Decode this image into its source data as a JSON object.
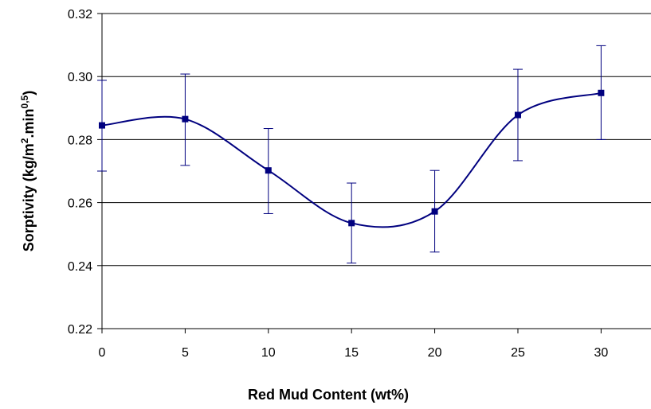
{
  "chart_data": {
    "type": "line",
    "xlabel": "Red Mud Content (wt%)",
    "ylabel": {
      "base": "Sorptivity (kg/m",
      "sup1": "2",
      "mid": ".min",
      "sup2": "0,5",
      "end": ")"
    },
    "xlim": [
      0,
      33
    ],
    "ylim": [
      0.22,
      0.32
    ],
    "xticks": [
      "0",
      "5",
      "10",
      "15",
      "20",
      "25",
      "30"
    ],
    "yticks": [
      "0.22",
      "0.24",
      "0.26",
      "0.28",
      "0.30",
      "0.32"
    ],
    "grid": "horizontal",
    "legend": "none",
    "smoothed": true,
    "series": [
      {
        "x": [
          0,
          5,
          10,
          15,
          20,
          25,
          30
        ],
        "y": [
          0.2845,
          0.2865,
          0.2702,
          0.2535,
          0.2572,
          0.2878,
          0.2948
        ],
        "error_low": [
          0.27,
          0.2718,
          0.2565,
          0.2408,
          0.2443,
          0.2733,
          0.28
        ],
        "error_high": [
          0.2988,
          0.3008,
          0.2835,
          0.2662,
          0.2702,
          0.3023,
          0.3098
        ],
        "color": "#00007f"
      }
    ]
  }
}
